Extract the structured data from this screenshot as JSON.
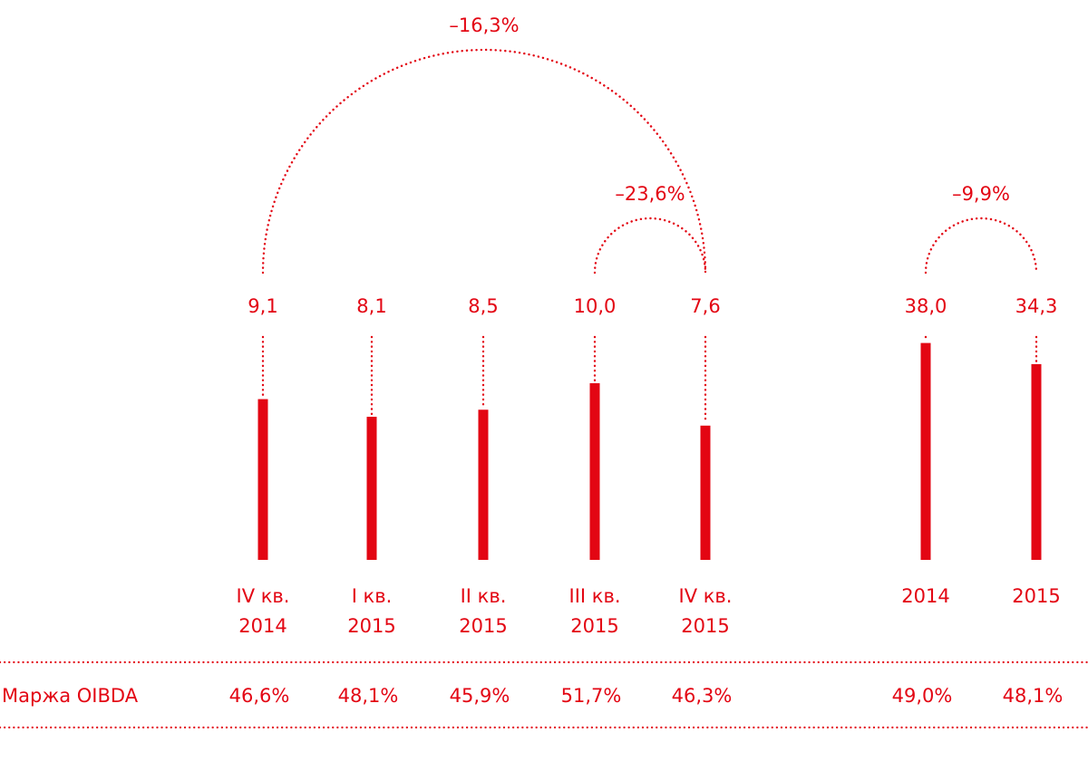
{
  "colors": {
    "accent": "#e30613",
    "bar": "#e30613"
  },
  "chart_data": [
    {
      "type": "bar",
      "categories": [
        [
          "IV кв.",
          "2014"
        ],
        [
          "I кв.",
          "2015"
        ],
        [
          "II кв.",
          "2015"
        ],
        [
          "III кв.",
          "2015"
        ],
        [
          "IV кв.",
          "2015"
        ]
      ],
      "values": [
        9.1,
        8.1,
        8.5,
        10.0,
        7.6
      ],
      "value_labels": [
        "9,1",
        "8,1",
        "8,5",
        "10,0",
        "7,6"
      ],
      "margin_labels": [
        "46,6%",
        "48,1%",
        "45,9%",
        "51,7%",
        "46,3%"
      ],
      "annotations": [
        {
          "from": 0,
          "to": 4,
          "text": "–16,3%"
        },
        {
          "from": 3,
          "to": 4,
          "text": "–23,6%"
        }
      ]
    },
    {
      "type": "bar",
      "categories": [
        [
          "2014"
        ],
        [
          "2015"
        ]
      ],
      "values": [
        38.0,
        34.3
      ],
      "value_labels": [
        "38,0",
        "34,3"
      ],
      "margin_labels": [
        "49,0%",
        "48,1%"
      ],
      "annotations": [
        {
          "from": 0,
          "to": 1,
          "text": "–9,9%"
        }
      ]
    }
  ],
  "margin_row": {
    "label": "Маржа OIBDA"
  }
}
